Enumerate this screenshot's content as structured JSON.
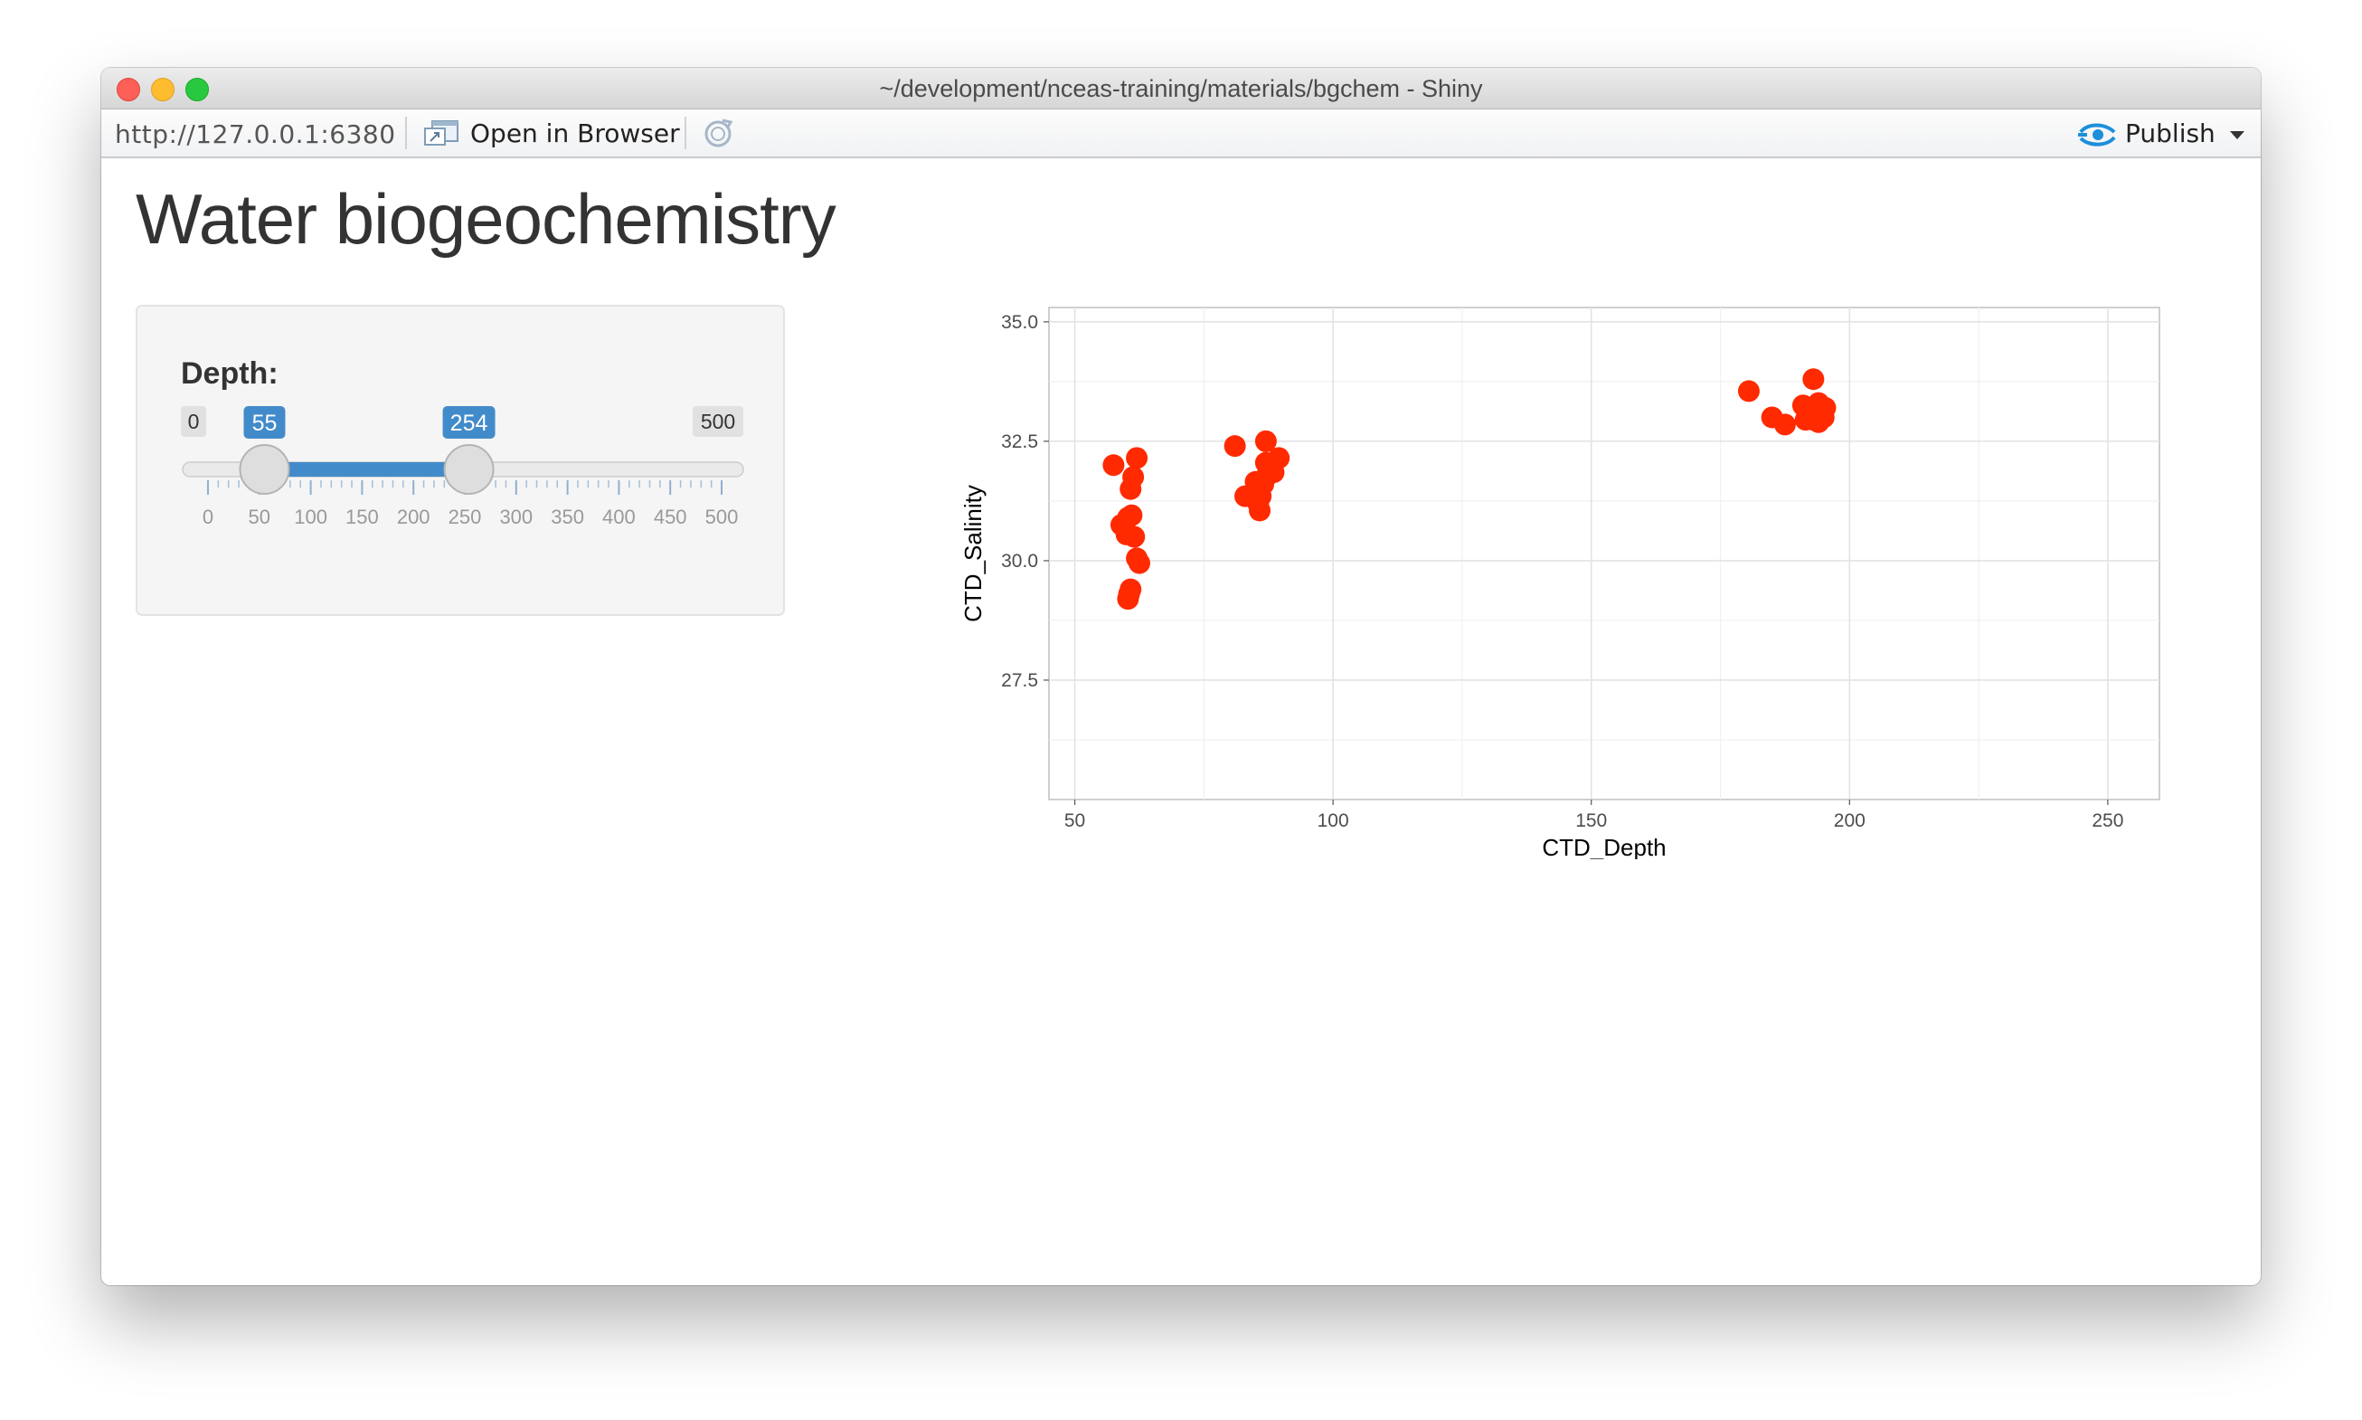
{
  "window": {
    "title": "~/development/nceas-training/materials/bgchem - Shiny"
  },
  "toolbar": {
    "url": "http://127.0.0.1:6380",
    "open_in_browser_label": "Open in Browser",
    "open_icon": "open-window-icon",
    "refresh_icon": "refresh-icon",
    "publish_label": "Publish",
    "publish_icon": "publish-icon"
  },
  "page": {
    "title": "Water biogeochemistry"
  },
  "slider": {
    "label": "Depth:",
    "min": 0,
    "max": 500,
    "from": 55,
    "to": 254,
    "min_label": "0",
    "max_label": "500",
    "from_label": "55",
    "to_label": "254",
    "major_ticks": [
      0,
      50,
      100,
      150,
      200,
      250,
      300,
      350,
      400,
      450,
      500
    ],
    "tick_labels": [
      "0",
      "50",
      "100",
      "150",
      "200",
      "250",
      "300",
      "350",
      "400",
      "450",
      "500"
    ],
    "accent_color": "#428bca"
  },
  "chart_data": {
    "type": "scatter",
    "xlabel": "CTD_Depth",
    "ylabel": "CTD_Salinity",
    "xlim": [
      45,
      260
    ],
    "ylim": [
      25.0,
      35.3
    ],
    "x_ticks": [
      50,
      100,
      150,
      200,
      250
    ],
    "x_tick_labels": [
      "50",
      "100",
      "150",
      "200",
      "250"
    ],
    "y_ticks": [
      27.5,
      30.0,
      32.5,
      35.0
    ],
    "y_tick_labels": [
      "27.5",
      "30.0",
      "32.5",
      "35.0"
    ],
    "x_minor": [
      75,
      125,
      175,
      225
    ],
    "y_minor": [
      26.25,
      28.75,
      31.25,
      33.75
    ],
    "grid": true,
    "point_color": "#ff2a00",
    "points": [
      {
        "x": 57.5,
        "y": 32.0
      },
      {
        "x": 62,
        "y": 32.15
      },
      {
        "x": 61.3,
        "y": 31.75
      },
      {
        "x": 60.8,
        "y": 31.5
      },
      {
        "x": 61,
        "y": 30.95
      },
      {
        "x": 60.3,
        "y": 30.9
      },
      {
        "x": 59,
        "y": 30.75
      },
      {
        "x": 60,
        "y": 30.55
      },
      {
        "x": 61.5,
        "y": 30.5
      },
      {
        "x": 62,
        "y": 30.05
      },
      {
        "x": 62.5,
        "y": 29.95
      },
      {
        "x": 60.8,
        "y": 29.4
      },
      {
        "x": 60.5,
        "y": 29.3
      },
      {
        "x": 60.3,
        "y": 29.2
      },
      {
        "x": 81,
        "y": 32.4
      },
      {
        "x": 87,
        "y": 32.5
      },
      {
        "x": 87,
        "y": 32.05
      },
      {
        "x": 89.5,
        "y": 32.15
      },
      {
        "x": 88.5,
        "y": 31.85
      },
      {
        "x": 87,
        "y": 31.75
      },
      {
        "x": 85,
        "y": 31.65
      },
      {
        "x": 86.5,
        "y": 31.6
      },
      {
        "x": 83,
        "y": 31.35
      },
      {
        "x": 86,
        "y": 31.35
      },
      {
        "x": 85.5,
        "y": 31.2
      },
      {
        "x": 85.8,
        "y": 31.05
      },
      {
        "x": 180.5,
        "y": 33.55
      },
      {
        "x": 193,
        "y": 33.8
      },
      {
        "x": 191,
        "y": 33.25
      },
      {
        "x": 194,
        "y": 33.3
      },
      {
        "x": 195.3,
        "y": 33.2
      },
      {
        "x": 192.5,
        "y": 33.15
      },
      {
        "x": 185,
        "y": 33.0
      },
      {
        "x": 192,
        "y": 33.05
      },
      {
        "x": 194.5,
        "y": 33.1
      },
      {
        "x": 195,
        "y": 33.0
      },
      {
        "x": 191.5,
        "y": 32.95
      },
      {
        "x": 187.5,
        "y": 32.85
      },
      {
        "x": 194,
        "y": 32.9
      },
      {
        "x": 193,
        "y": 32.95
      }
    ]
  }
}
